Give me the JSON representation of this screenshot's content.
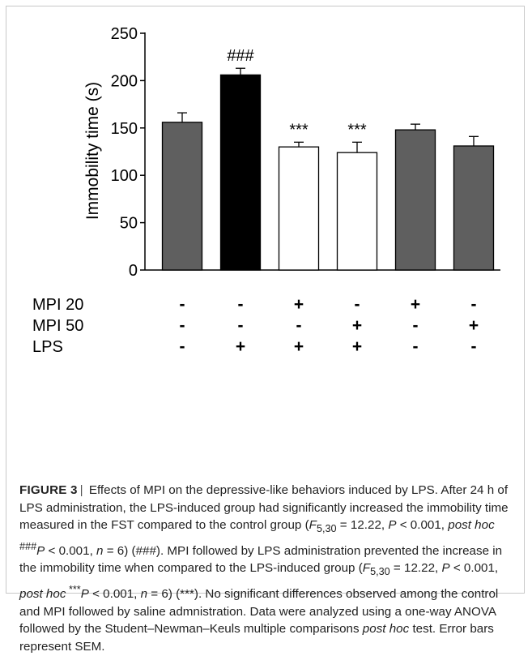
{
  "chart_data": {
    "type": "bar",
    "ylabel": "Immobility time (s)",
    "ylim": [
      0,
      250
    ],
    "yticks": [
      0,
      50,
      100,
      150,
      200,
      250
    ],
    "grid": false,
    "legend": "none",
    "bars": [
      {
        "value": 156,
        "error": 10,
        "color": "#5f5f5f",
        "annotation": ""
      },
      {
        "value": 206,
        "error": 7,
        "color": "#000000",
        "annotation": "###"
      },
      {
        "value": 130,
        "error": 5,
        "color": "#ffffff",
        "annotation": "***"
      },
      {
        "value": 124,
        "error": 11,
        "color": "#ffffff",
        "annotation": "***"
      },
      {
        "value": 148,
        "error": 6,
        "color": "#5f5f5f",
        "annotation": ""
      },
      {
        "value": 131,
        "error": 10,
        "color": "#5f5f5f",
        "annotation": ""
      }
    ],
    "treatment_rows": [
      {
        "label": "MPI 20",
        "marks": [
          "-",
          "-",
          "+",
          "-",
          "+",
          "-"
        ]
      },
      {
        "label": "MPI 50",
        "marks": [
          "-",
          "-",
          "-",
          "+",
          "-",
          "+"
        ]
      },
      {
        "label": "LPS",
        "marks": [
          "-",
          "+",
          "+",
          "+",
          "-",
          "-"
        ]
      }
    ]
  },
  "caption": {
    "label": "FIGURE 3",
    "separator": "|",
    "s1": " Effects of MPI on the depressive-like behaviors induced by LPS. After 24 h of LPS administration, the LPS-induced group had significantly increased the immobility time measured in the FST compared to the control group (",
    "f1": "F",
    "f1sub": "5,30",
    "s2": " = 12.22, ",
    "p1": "P",
    "s3": " < 0.001, ",
    "ph1": "post hoc",
    "sup1": " ###",
    "p2": "P",
    "s4": " < 0.001, ",
    "n1": "n",
    "s5": " = 6) (###). MPI followed by LPS administration prevented the increase in the immobility time when compared to the LPS-induced group (",
    "f2": "F",
    "f2sub": "5,30",
    "s6": " = 12.22, ",
    "p3": "P",
    "s7": " < 0.001, ",
    "ph2": "post hoc",
    "sup2": " ***",
    "p4": "P",
    "s8": " < 0.001, ",
    "n2": "n",
    "s9": " = 6) (***). No significant differences observed among the control and MPI followed by saline admnistration. Data were analyzed using a one-way ANOVA followed by the Student–Newman–Keuls multiple comparisons ",
    "ph3": "post hoc",
    "s10": " test. Error bars represent SEM."
  }
}
